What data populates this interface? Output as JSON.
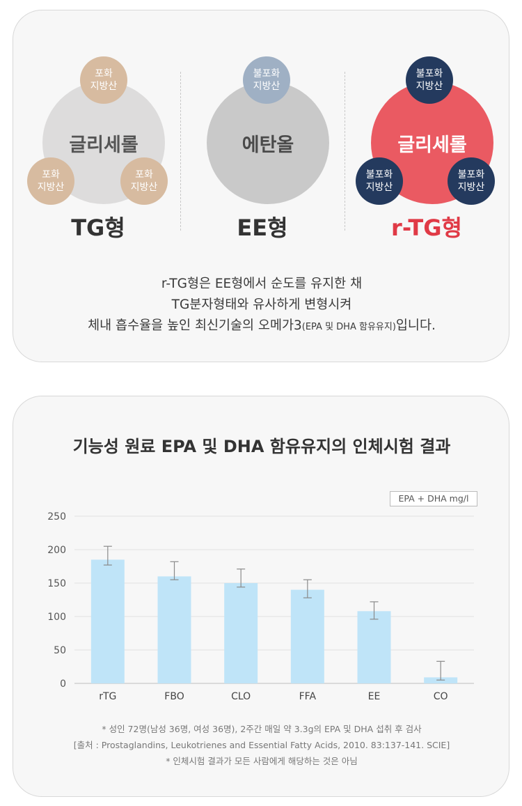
{
  "top": {
    "tg": {
      "center": "글리세롤",
      "tags": [
        "포화\n지방산",
        "포화\n지방산",
        "포화\n지방산"
      ],
      "label": "TG형"
    },
    "ee": {
      "center": "에탄올",
      "tags": [
        "불포화\n지방산"
      ],
      "label": "EE형"
    },
    "rtg": {
      "center": "글리세롤",
      "tags": [
        "불포화\n지방산",
        "불포화\n지방산",
        "불포화\n지방산"
      ],
      "label": "r-TG형"
    },
    "description": {
      "line1": "r-TG형은 EE형에서 순도를 유지한 채",
      "line2": "TG분자형태와 유사하게 변형시켜",
      "line3a": "체내 흡수율을 높인 최신기술의 오메가3",
      "line3b": "(EPA 및 DHA 함유유지)",
      "line3c": "입니다."
    }
  },
  "colors": {
    "tg_big": "#dddcdc",
    "tg_small": "#d7bba0",
    "ee_big": "#c9c9c9",
    "ee_small": "#9fb0c4",
    "rtg_big": "#ea5a62",
    "rtg_small": "#243a5e",
    "rtg_label": "#e03a46",
    "bar": "#bfe4f8",
    "grid": "#e2e2e2"
  },
  "chart_data": {
    "type": "bar",
    "title": "기능성 원료 EPA 및 DHA 함유유지의 인체시험 결과",
    "unit": "EPA + DHA mg/l",
    "categories": [
      "rTG",
      "FBO",
      "CLO",
      "FFA",
      "EE",
      "CO"
    ],
    "values": [
      185,
      160,
      150,
      140,
      108,
      9
    ],
    "error_low": [
      177,
      155,
      144,
      128,
      96,
      5
    ],
    "error_high": [
      205,
      182,
      171,
      155,
      122,
      33
    ],
    "yticks": [
      "250",
      "200",
      "150",
      "100",
      "50",
      "0"
    ],
    "ylim": [
      0,
      250
    ],
    "grid": true
  },
  "footnotes": {
    "line1": "* 성인 72명(남성 36명, 여성 36명), 2주간 매일 약 3.3g의 EPA 및 DHA 섭취 후 검사",
    "line2": "[출처 : Prostaglandins, Leukotrienes and Essential Fatty Acids, 2010. 83:137-141. SCIE]",
    "line3": "* 인체시험 결과가 모든 사람에게 해당하는 것은 아님"
  }
}
